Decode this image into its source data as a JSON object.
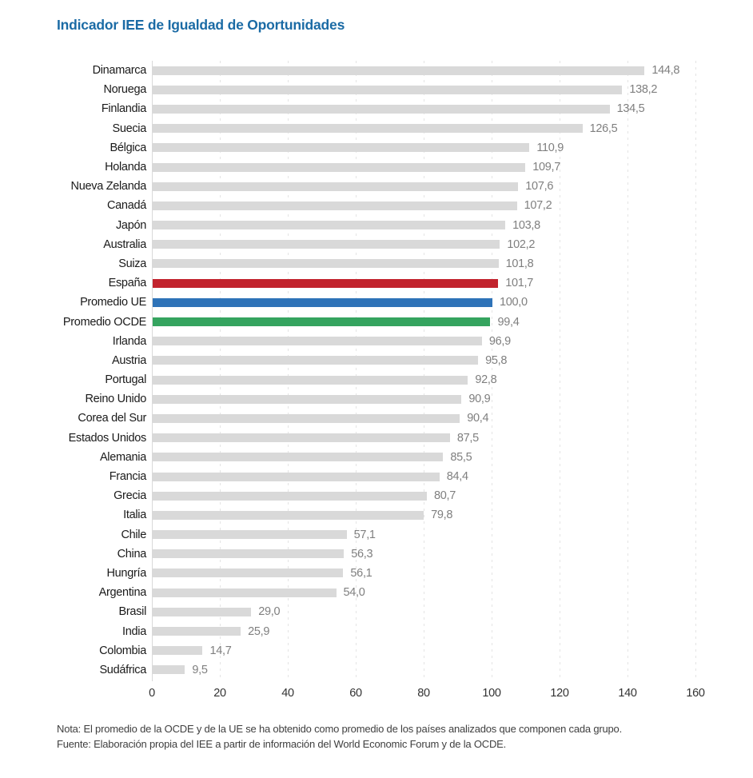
{
  "header": {
    "title": "Indicador IEE de Igualdad de Oportunidades"
  },
  "chart_data": {
    "type": "bar",
    "orientation": "horizontal",
    "title": "Indicador IEE de Igualdad de Oportunidades",
    "xlabel": "",
    "ylabel": "",
    "xlim": [
      0,
      160
    ],
    "xticks": [
      0,
      20,
      40,
      60,
      80,
      100,
      120,
      140,
      160
    ],
    "grid": "vertical dashed gridlines at each tick, light gray",
    "legend": "none",
    "value_label_position": "right of bar end",
    "decimal_separator": "comma",
    "colors": {
      "bar_default": "#d9d9d9",
      "bar_espana": "#c2232d",
      "bar_promedio_ue": "#2e73b8",
      "bar_promedio_ocde": "#35a45f",
      "title_text": "#1b6ba5",
      "category_label": "#1a1a1a",
      "value_label": "#7f7f7f",
      "tick_label": "#333333",
      "grid_line": "#e4e4e4",
      "axis_line": "#d9d9d9",
      "note_text": "#3f3f3f"
    },
    "categories": [
      "Dinamarca",
      "Noruega",
      "Finlandia",
      "Suecia",
      "Bélgica",
      "Holanda",
      "Nueva Zelanda",
      "Canadá",
      "Japón",
      "Australia",
      "Suiza",
      "España",
      "Promedio UE",
      "Promedio OCDE",
      "Irlanda",
      "Austria",
      "Portugal",
      "Reino Unido",
      "Corea del Sur",
      "Estados Unidos",
      "Alemania",
      "Francia",
      "Grecia",
      "Italia",
      "Chile",
      "China",
      "Hungría",
      "Argentina",
      "Brasil",
      "India",
      "Colombia",
      "Sudáfrica"
    ],
    "values": [
      144.8,
      138.2,
      134.5,
      126.5,
      110.9,
      109.7,
      107.6,
      107.2,
      103.8,
      102.2,
      101.8,
      101.7,
      100.0,
      99.4,
      96.9,
      95.8,
      92.8,
      90.9,
      90.4,
      87.5,
      85.5,
      84.4,
      80.7,
      79.8,
      57.1,
      56.3,
      56.1,
      54.0,
      29.0,
      25.9,
      14.7,
      9.5
    ],
    "rows": [
      {
        "label": "Dinamarca",
        "value": 144.8,
        "display": "144,8",
        "color": "default"
      },
      {
        "label": "Noruega",
        "value": 138.2,
        "display": "138,2",
        "color": "default"
      },
      {
        "label": "Finlandia",
        "value": 134.5,
        "display": "134,5",
        "color": "default"
      },
      {
        "label": "Suecia",
        "value": 126.5,
        "display": "126,5",
        "color": "default"
      },
      {
        "label": "Bélgica",
        "value": 110.9,
        "display": "110,9",
        "color": "default"
      },
      {
        "label": "Holanda",
        "value": 109.7,
        "display": "109,7",
        "color": "default"
      },
      {
        "label": "Nueva Zelanda",
        "value": 107.6,
        "display": "107,6",
        "color": "default"
      },
      {
        "label": "Canadá",
        "value": 107.2,
        "display": "107,2",
        "color": "default"
      },
      {
        "label": "Japón",
        "value": 103.8,
        "display": "103,8",
        "color": "default"
      },
      {
        "label": "Australia",
        "value": 102.2,
        "display": "102,2",
        "color": "default"
      },
      {
        "label": "Suiza",
        "value": 101.8,
        "display": "101,8",
        "color": "default"
      },
      {
        "label": "España",
        "value": 101.7,
        "display": "101,7",
        "color": "espana"
      },
      {
        "label": "Promedio UE",
        "value": 100.0,
        "display": "100,0",
        "color": "promedio_ue"
      },
      {
        "label": "Promedio OCDE",
        "value": 99.4,
        "display": "99,4",
        "color": "promedio_ocde"
      },
      {
        "label": "Irlanda",
        "value": 96.9,
        "display": "96,9",
        "color": "default"
      },
      {
        "label": "Austria",
        "value": 95.8,
        "display": "95,8",
        "color": "default"
      },
      {
        "label": "Portugal",
        "value": 92.8,
        "display": "92,8",
        "color": "default"
      },
      {
        "label": "Reino Unido",
        "value": 90.9,
        "display": "90,9",
        "color": "default"
      },
      {
        "label": "Corea del Sur",
        "value": 90.4,
        "display": "90,4",
        "color": "default"
      },
      {
        "label": "Estados Unidos",
        "value": 87.5,
        "display": "87,5",
        "color": "default"
      },
      {
        "label": "Alemania",
        "value": 85.5,
        "display": "85,5",
        "color": "default"
      },
      {
        "label": "Francia",
        "value": 84.4,
        "display": "84,4",
        "color": "default"
      },
      {
        "label": "Grecia",
        "value": 80.7,
        "display": "80,7",
        "color": "default"
      },
      {
        "label": "Italia",
        "value": 79.8,
        "display": "79,8",
        "color": "default"
      },
      {
        "label": "Chile",
        "value": 57.1,
        "display": "57,1",
        "color": "default"
      },
      {
        "label": "China",
        "value": 56.3,
        "display": "56,3",
        "color": "default"
      },
      {
        "label": "Hungría",
        "value": 56.1,
        "display": "56,1",
        "color": "default"
      },
      {
        "label": "Argentina",
        "value": 54.0,
        "display": "54,0",
        "color": "default"
      },
      {
        "label": "Brasil",
        "value": 29.0,
        "display": "29,0",
        "color": "default"
      },
      {
        "label": "India",
        "value": 25.9,
        "display": "25,9",
        "color": "default"
      },
      {
        "label": "Colombia",
        "value": 14.7,
        "display": "14,7",
        "color": "default"
      },
      {
        "label": "Sudáfrica",
        "value": 9.5,
        "display": "9,5",
        "color": "default"
      }
    ]
  },
  "notes": {
    "line1": "Nota: El promedio de la OCDE y de la UE se ha obtenido como promedio de los países analizados que  componen cada grupo.",
    "line2": "Fuente: Elaboración propia del IEE a partir de información del World Economic Forum y de la OCDE."
  }
}
